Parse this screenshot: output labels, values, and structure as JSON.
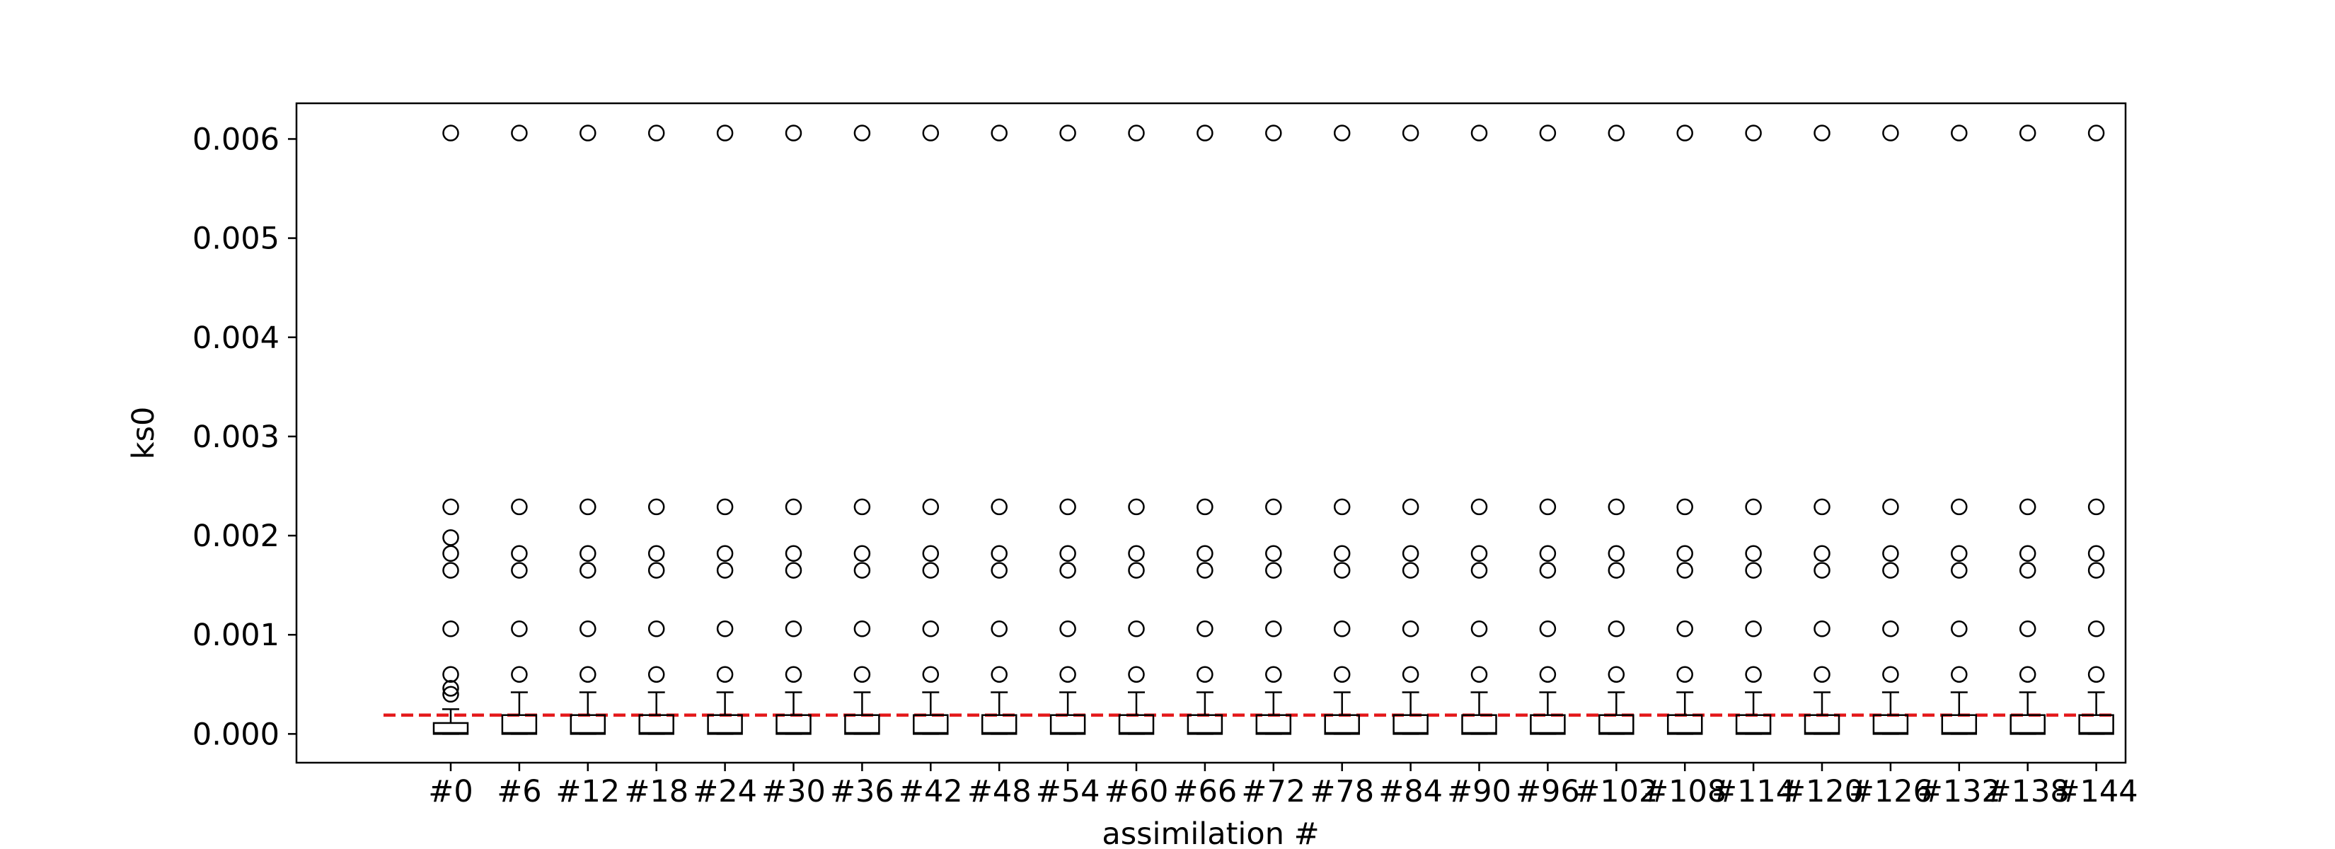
{
  "chart_data": {
    "type": "box",
    "title": "",
    "xlabel": "assimilation #",
    "ylabel": "ks0",
    "ylim": [
      -0.00029,
      0.00636
    ],
    "yticks": [
      "0.000",
      "0.001",
      "0.002",
      "0.003",
      "0.004",
      "0.005",
      "0.006"
    ],
    "yticks_values": [
      0.0,
      0.001,
      0.002,
      0.003,
      0.004,
      0.005,
      0.006
    ],
    "categories": [
      "#0",
      "#6",
      "#12",
      "#18",
      "#24",
      "#30",
      "#36",
      "#42",
      "#48",
      "#54",
      "#60",
      "#66",
      "#72",
      "#78",
      "#84",
      "#90",
      "#96",
      "#102",
      "#108",
      "#114",
      "#120",
      "#126",
      "#132",
      "#138",
      "#144"
    ],
    "reference_line": {
      "value": 0.00019,
      "style": "dashed",
      "color": "#e41a1c"
    },
    "grid": false,
    "colors": {
      "box": "#000000",
      "reference": "#e41a1c"
    },
    "boxes": [
      {
        "q1": 0.0,
        "median": 1e-05,
        "q3": 0.00011,
        "whisker_low": 0.0,
        "whisker_high": 0.00025,
        "outliers": [
          0.0004,
          0.00046,
          0.0006,
          0.00106,
          0.00165,
          0.00182,
          0.00198,
          0.00229,
          0.00606
        ]
      },
      {
        "q1": 0.0,
        "median": 1e-05,
        "q3": 0.00019,
        "whisker_low": 0.0,
        "whisker_high": 0.00042,
        "outliers": [
          0.0006,
          0.00106,
          0.00165,
          0.00182,
          0.00229,
          0.00606
        ]
      },
      {
        "q1": 0.0,
        "median": 1e-05,
        "q3": 0.00019,
        "whisker_low": 0.0,
        "whisker_high": 0.00042,
        "outliers": [
          0.0006,
          0.00106,
          0.00165,
          0.00182,
          0.00229,
          0.00606
        ]
      },
      {
        "q1": 0.0,
        "median": 1e-05,
        "q3": 0.00019,
        "whisker_low": 0.0,
        "whisker_high": 0.00042,
        "outliers": [
          0.0006,
          0.00106,
          0.00165,
          0.00182,
          0.00229,
          0.00606
        ]
      },
      {
        "q1": 0.0,
        "median": 1e-05,
        "q3": 0.00019,
        "whisker_low": 0.0,
        "whisker_high": 0.00042,
        "outliers": [
          0.0006,
          0.00106,
          0.00165,
          0.00182,
          0.00229,
          0.00606
        ]
      },
      {
        "q1": 0.0,
        "median": 1e-05,
        "q3": 0.00019,
        "whisker_low": 0.0,
        "whisker_high": 0.00042,
        "outliers": [
          0.0006,
          0.00106,
          0.00165,
          0.00182,
          0.00229,
          0.00606
        ]
      },
      {
        "q1": 0.0,
        "median": 1e-05,
        "q3": 0.00019,
        "whisker_low": 0.0,
        "whisker_high": 0.00042,
        "outliers": [
          0.0006,
          0.00106,
          0.00165,
          0.00182,
          0.00229,
          0.00606
        ]
      },
      {
        "q1": 0.0,
        "median": 1e-05,
        "q3": 0.00019,
        "whisker_low": 0.0,
        "whisker_high": 0.00042,
        "outliers": [
          0.0006,
          0.00106,
          0.00165,
          0.00182,
          0.00229,
          0.00606
        ]
      },
      {
        "q1": 0.0,
        "median": 1e-05,
        "q3": 0.00019,
        "whisker_low": 0.0,
        "whisker_high": 0.00042,
        "outliers": [
          0.0006,
          0.00106,
          0.00165,
          0.00182,
          0.00229,
          0.00606
        ]
      },
      {
        "q1": 0.0,
        "median": 1e-05,
        "q3": 0.00019,
        "whisker_low": 0.0,
        "whisker_high": 0.00042,
        "outliers": [
          0.0006,
          0.00106,
          0.00165,
          0.00182,
          0.00229,
          0.00606
        ]
      },
      {
        "q1": 0.0,
        "median": 1e-05,
        "q3": 0.00019,
        "whisker_low": 0.0,
        "whisker_high": 0.00042,
        "outliers": [
          0.0006,
          0.00106,
          0.00165,
          0.00182,
          0.00229,
          0.00606
        ]
      },
      {
        "q1": 0.0,
        "median": 1e-05,
        "q3": 0.00019,
        "whisker_low": 0.0,
        "whisker_high": 0.00042,
        "outliers": [
          0.0006,
          0.00106,
          0.00165,
          0.00182,
          0.00229,
          0.00606
        ]
      },
      {
        "q1": 0.0,
        "median": 1e-05,
        "q3": 0.00019,
        "whisker_low": 0.0,
        "whisker_high": 0.00042,
        "outliers": [
          0.0006,
          0.00106,
          0.00165,
          0.00182,
          0.00229,
          0.00606
        ]
      },
      {
        "q1": 0.0,
        "median": 1e-05,
        "q3": 0.00019,
        "whisker_low": 0.0,
        "whisker_high": 0.00042,
        "outliers": [
          0.0006,
          0.00106,
          0.00165,
          0.00182,
          0.00229,
          0.00606
        ]
      },
      {
        "q1": 0.0,
        "median": 1e-05,
        "q3": 0.00019,
        "whisker_low": 0.0,
        "whisker_high": 0.00042,
        "outliers": [
          0.0006,
          0.00106,
          0.00165,
          0.00182,
          0.00229,
          0.00606
        ]
      },
      {
        "q1": 0.0,
        "median": 1e-05,
        "q3": 0.00019,
        "whisker_low": 0.0,
        "whisker_high": 0.00042,
        "outliers": [
          0.0006,
          0.00106,
          0.00165,
          0.00182,
          0.00229,
          0.00606
        ]
      },
      {
        "q1": 0.0,
        "median": 1e-05,
        "q3": 0.00019,
        "whisker_low": 0.0,
        "whisker_high": 0.00042,
        "outliers": [
          0.0006,
          0.00106,
          0.00165,
          0.00182,
          0.00229,
          0.00606
        ]
      },
      {
        "q1": 0.0,
        "median": 1e-05,
        "q3": 0.00019,
        "whisker_low": 0.0,
        "whisker_high": 0.00042,
        "outliers": [
          0.0006,
          0.00106,
          0.00165,
          0.00182,
          0.00229,
          0.00606
        ]
      },
      {
        "q1": 0.0,
        "median": 1e-05,
        "q3": 0.00019,
        "whisker_low": 0.0,
        "whisker_high": 0.00042,
        "outliers": [
          0.0006,
          0.00106,
          0.00165,
          0.00182,
          0.00229,
          0.00606
        ]
      },
      {
        "q1": 0.0,
        "median": 1e-05,
        "q3": 0.00019,
        "whisker_low": 0.0,
        "whisker_high": 0.00042,
        "outliers": [
          0.0006,
          0.00106,
          0.00165,
          0.00182,
          0.00229,
          0.00606
        ]
      },
      {
        "q1": 0.0,
        "median": 1e-05,
        "q3": 0.00019,
        "whisker_low": 0.0,
        "whisker_high": 0.00042,
        "outliers": [
          0.0006,
          0.00106,
          0.00165,
          0.00182,
          0.00229,
          0.00606
        ]
      },
      {
        "q1": 0.0,
        "median": 1e-05,
        "q3": 0.00019,
        "whisker_low": 0.0,
        "whisker_high": 0.00042,
        "outliers": [
          0.0006,
          0.00106,
          0.00165,
          0.00182,
          0.00229,
          0.00606
        ]
      },
      {
        "q1": 0.0,
        "median": 1e-05,
        "q3": 0.00019,
        "whisker_low": 0.0,
        "whisker_high": 0.00042,
        "outliers": [
          0.0006,
          0.00106,
          0.00165,
          0.00182,
          0.00229,
          0.00606
        ]
      },
      {
        "q1": 0.0,
        "median": 1e-05,
        "q3": 0.00019,
        "whisker_low": 0.0,
        "whisker_high": 0.00042,
        "outliers": [
          0.0006,
          0.00106,
          0.00165,
          0.00182,
          0.00229,
          0.00606
        ]
      },
      {
        "q1": 0.0,
        "median": 1e-05,
        "q3": 0.00019,
        "whisker_low": 0.0,
        "whisker_high": 0.00042,
        "outliers": [
          0.0006,
          0.00106,
          0.00165,
          0.00182,
          0.00229,
          0.00606
        ]
      }
    ]
  }
}
